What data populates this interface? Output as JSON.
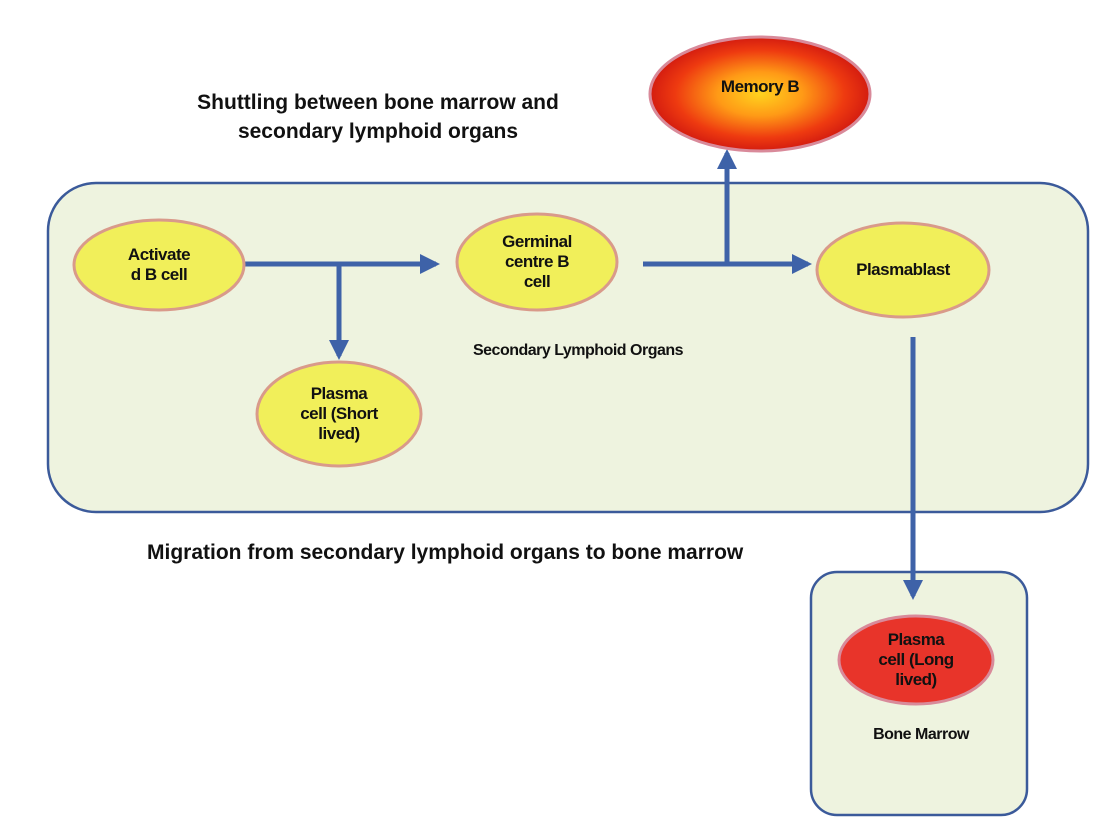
{
  "captions": {
    "shuttling": "Shuttling between bone marrow and\nsecondary lymphoid organs",
    "migration": "Migration from secondary lymphoid organs to bone marrow"
  },
  "regions": {
    "secondary_lymphoid_organs": "Secondary Lymphoid Organs",
    "bone_marrow": "Bone Marrow"
  },
  "nodes": {
    "activated_b_cell": "Activate\nd B cell",
    "germinal_centre_b_cell": "Germinal\ncentre B\ncell",
    "plasmablast": "Plasmablast",
    "plasma_cell_short_lived": "Plasma\ncell (Short\nlived)",
    "memory_b": "Memory B",
    "plasma_cell_long_lived": "Plasma\ncell (Long\nlived)"
  },
  "colors": {
    "region_fill": "#eef3df",
    "region_stroke": "#3b5a9a",
    "node_fill": "#f1ef5a",
    "node_stroke": "#d99a8a",
    "arrow": "#3e62a8",
    "memory_center": "#ffd21e",
    "memory_edge": "#c80f0f",
    "long_lived_fill": "#e8342a"
  }
}
